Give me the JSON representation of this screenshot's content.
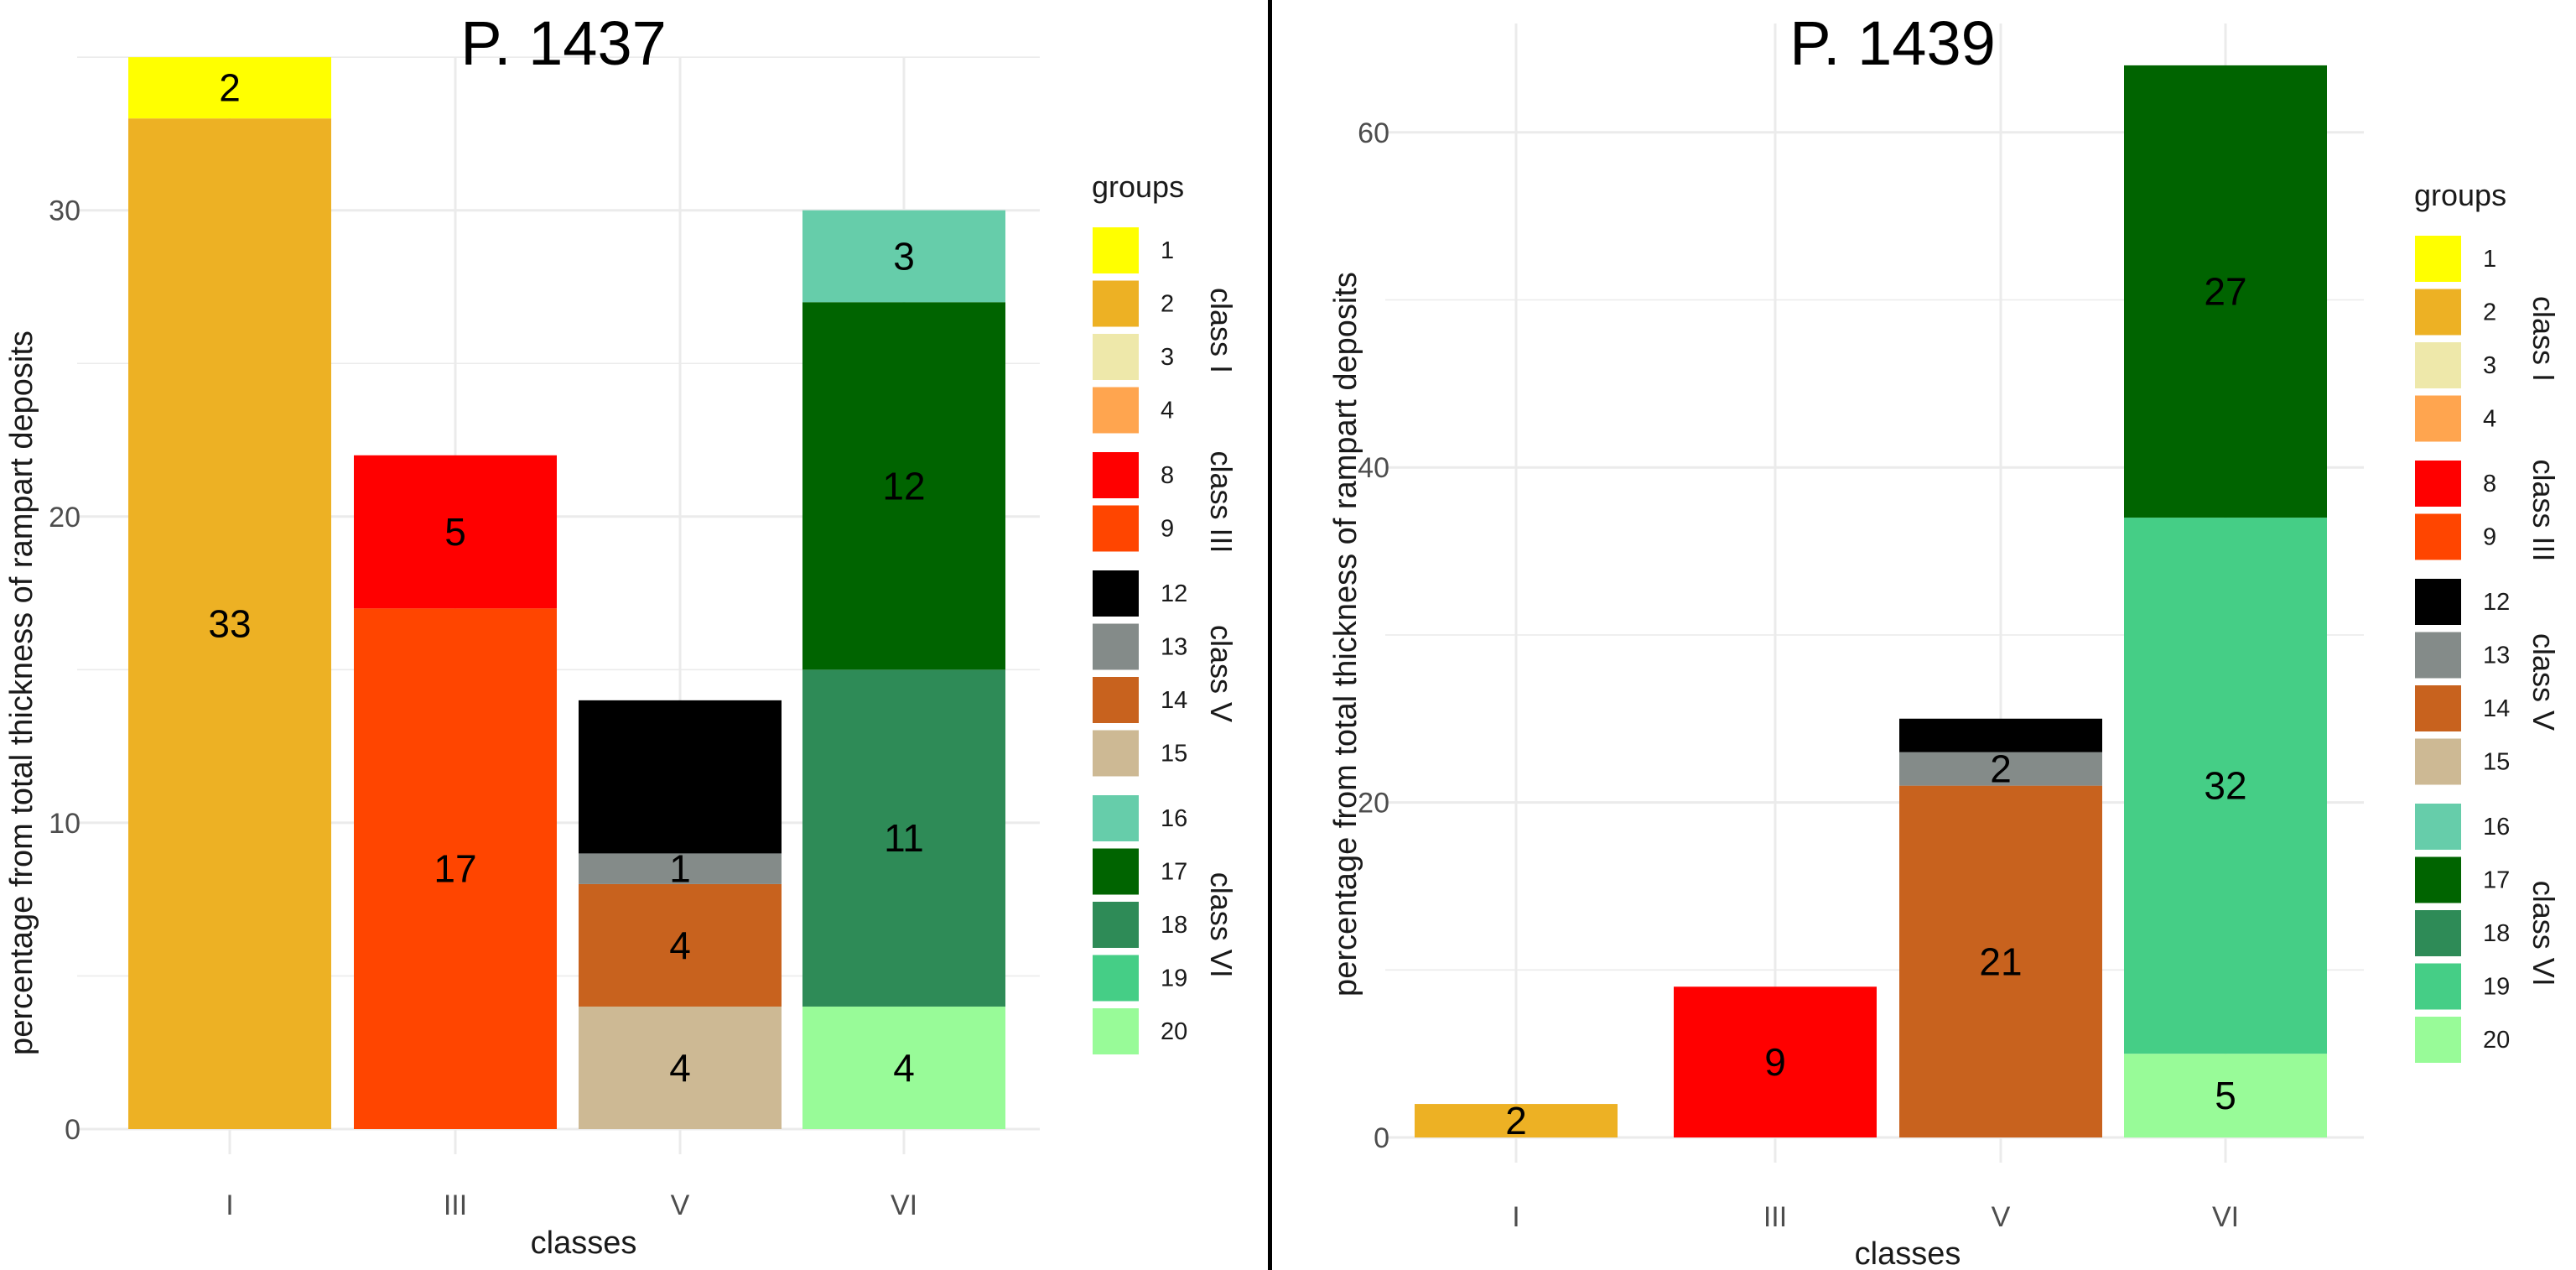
{
  "chart_data": [
    {
      "type": "bar",
      "stacked": true,
      "title": "P. 1437",
      "xlabel": "classes",
      "ylabel": "percentage from total thickness of rampart deposits",
      "categories": [
        "I",
        "III",
        "V",
        "VI"
      ],
      "ylim": [
        0,
        35
      ],
      "yticks": [
        0,
        10,
        20,
        30
      ],
      "grid": true,
      "legend_position": "right",
      "stacks": [
        {
          "category": "I",
          "segments": [
            {
              "group": "2",
              "value": 33
            },
            {
              "group": "1",
              "value": 2
            }
          ]
        },
        {
          "category": "III",
          "segments": [
            {
              "group": "9",
              "value": 17
            },
            {
              "group": "8",
              "value": 5
            }
          ]
        },
        {
          "category": "V",
          "segments": [
            {
              "group": "15",
              "value": 4
            },
            {
              "group": "14",
              "value": 4
            },
            {
              "group": "13",
              "value": 1
            },
            {
              "group": "12",
              "value": 5
            }
          ]
        },
        {
          "category": "VI",
          "segments": [
            {
              "group": "20",
              "value": 4
            },
            {
              "group": "18",
              "value": 11
            },
            {
              "group": "17",
              "value": 12
            },
            {
              "group": "16",
              "value": 3
            }
          ]
        }
      ]
    },
    {
      "type": "bar",
      "stacked": true,
      "title": "P. 1439",
      "xlabel": "classes",
      "ylabel": "percentage from total thickness of rampart deposits",
      "categories": [
        "I",
        "III",
        "V",
        "VI"
      ],
      "ylim": [
        0,
        66.5
      ],
      "yticks": [
        0,
        20,
        40,
        60
      ],
      "grid": true,
      "legend_position": "right",
      "stacks": [
        {
          "category": "I",
          "segments": [
            {
              "group": "2",
              "value": 2
            }
          ]
        },
        {
          "category": "III",
          "segments": [
            {
              "group": "8",
              "value": 9
            }
          ]
        },
        {
          "category": "V",
          "segments": [
            {
              "group": "14",
              "value": 21
            },
            {
              "group": "13",
              "value": 2
            },
            {
              "group": "12",
              "value": 2
            }
          ]
        },
        {
          "category": "VI",
          "segments": [
            {
              "group": "20",
              "value": 5
            },
            {
              "group": "19",
              "value": 32
            },
            {
              "group": "17",
              "value": 27
            }
          ]
        }
      ]
    }
  ],
  "legend": {
    "title": "groups",
    "classes": [
      {
        "label": "class I",
        "groups": [
          "1",
          "2",
          "3",
          "4"
        ]
      },
      {
        "label": "class III",
        "groups": [
          "8",
          "9"
        ]
      },
      {
        "label": "class V",
        "groups": [
          "12",
          "13",
          "14",
          "15"
        ]
      },
      {
        "label": "class VI",
        "groups": [
          "16",
          "17",
          "18",
          "19",
          "20"
        ]
      }
    ]
  },
  "colors": {
    "1": "#FFFF00",
    "2": "#EDB124",
    "3": "#EEE8AA",
    "4": "#FFA54F",
    "8": "#FF0000",
    "9": "#FF4500",
    "12": "#000000",
    "13": "#848B89",
    "14": "#C8621E",
    "15": "#CDB994",
    "16": "#66CDAA",
    "17": "#006400",
    "18": "#2E8B57",
    "19": "#45CE86",
    "20": "#98FB98"
  }
}
